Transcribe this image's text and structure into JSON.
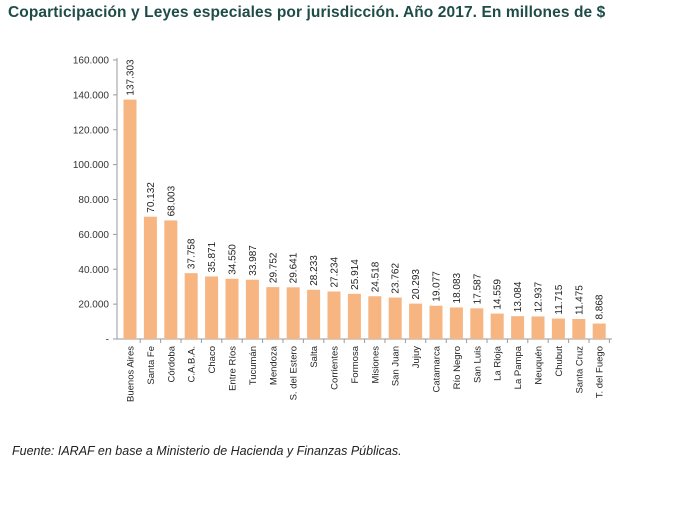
{
  "title": "Coparticipación y Leyes especiales por jurisdicción. Año 2017. En millones de $",
  "source": "Fuente: IARAF en base a Ministerio de Hacienda y Finanzas Públicas.",
  "colors": {
    "bar": "#f7b582",
    "title": "#1e4c48",
    "axis": "#9a9a9a"
  },
  "chart_data": {
    "type": "bar",
    "title": "Coparticipación y Leyes especiales por jurisdicción. Año 2017. En millones de $",
    "xlabel": "",
    "ylabel": "",
    "ylim": [
      0,
      160000
    ],
    "y_ticks": [
      0,
      20000,
      40000,
      60000,
      80000,
      100000,
      120000,
      140000,
      160000
    ],
    "y_tick_labels": [
      "-",
      "20.000",
      "40.000",
      "60.000",
      "80.000",
      "100.000",
      "120.000",
      "140.000",
      "160.000"
    ],
    "grid": false,
    "legend": "none",
    "categories": [
      "Buenos Aires",
      "Santa Fe",
      "Córdoba",
      "C.A.B.A.",
      "Chaco",
      "Entre Ríos",
      "Tucumán",
      "Mendoza",
      "S. del Estero",
      "Salta",
      "Corrientes",
      "Formosa",
      "Misiones",
      "San Juan",
      "Jujuy",
      "Catamarca",
      "Río Negro",
      "San Luis",
      "La Rioja",
      "La Pampa",
      "Neuquén",
      "Chubut",
      "Santa Cruz",
      "T. del Fuego"
    ],
    "values": [
      137303,
      70132,
      68003,
      37758,
      35871,
      34550,
      33987,
      29752,
      29641,
      28233,
      27234,
      25914,
      24518,
      23762,
      20293,
      19077,
      18083,
      17587,
      14559,
      13084,
      12937,
      11715,
      11475,
      8868
    ],
    "value_labels": [
      "137.303",
      "70.132",
      "68.003",
      "37.758",
      "35.871",
      "34.550",
      "33.987",
      "29.752",
      "29.641",
      "28.233",
      "27.234",
      "25.914",
      "24.518",
      "23.762",
      "20.293",
      "19.077",
      "18.083",
      "17.587",
      "14.559",
      "13.084",
      "12.937",
      "11.715",
      "11.475",
      "8.868"
    ]
  }
}
